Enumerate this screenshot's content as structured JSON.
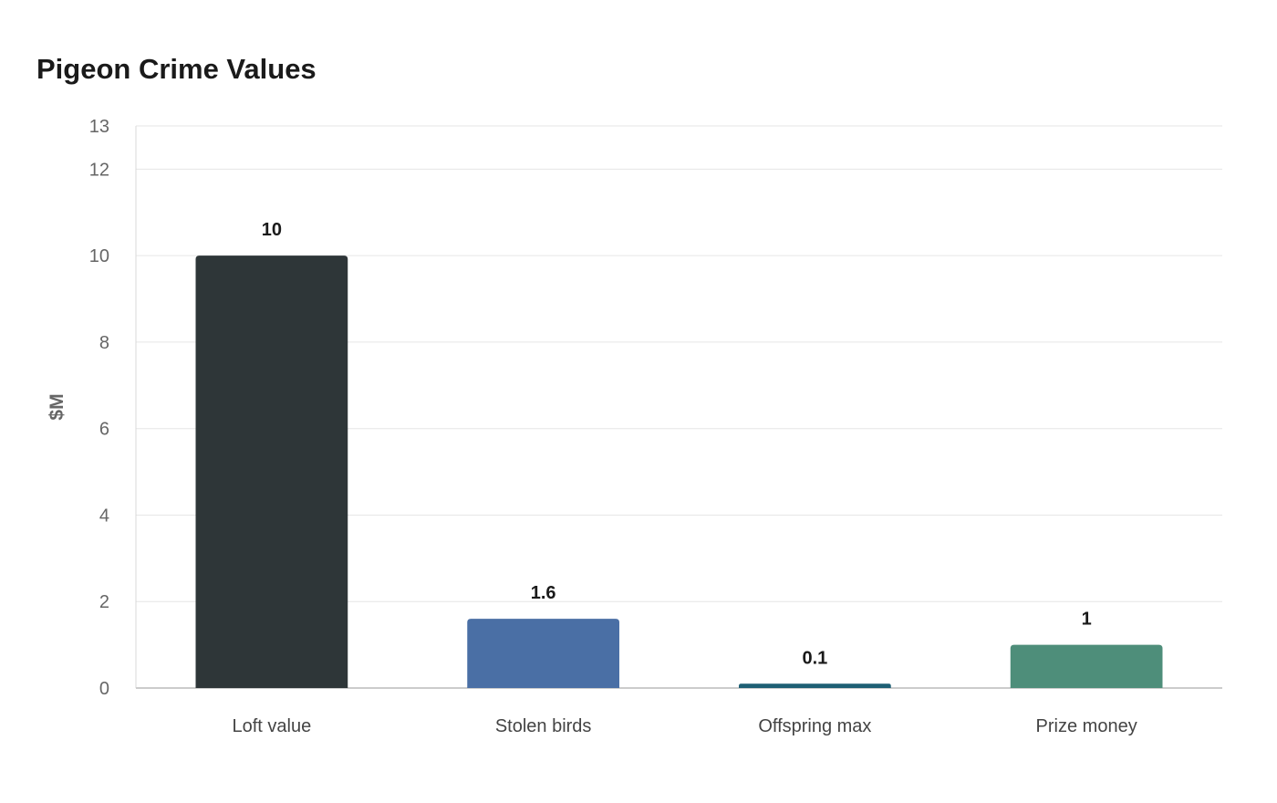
{
  "chart_data": {
    "type": "bar",
    "title": "Pigeon Crime Values",
    "xlabel": "",
    "ylabel": "$M",
    "categories": [
      "Loft value",
      "Stolen birds",
      "Offspring max",
      "Prize money"
    ],
    "values": [
      10,
      1.6,
      0.1,
      1
    ],
    "value_labels": [
      "10",
      "1.6",
      "0.1",
      "1"
    ],
    "colors": [
      "#2e3638",
      "#4a6fa5",
      "#1e5f74",
      "#4e8e7a"
    ],
    "ylim": [
      0,
      13
    ],
    "yticks": [
      0,
      2,
      4,
      6,
      8,
      10,
      12,
      13
    ],
    "grid": true,
    "legend": "none"
  }
}
